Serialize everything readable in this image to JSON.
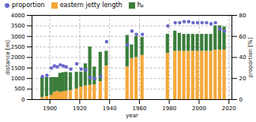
{
  "chart_data": {
    "type": "bar",
    "stacked": true,
    "xlabel": "year",
    "ylabel": "distance [m]",
    "y2label": "proportion [%]",
    "x": [
      1895,
      1898,
      1901,
      1903,
      1905,
      1907,
      1909,
      1911,
      1914,
      1918,
      1921,
      1924,
      1927,
      1930,
      1934,
      1938,
      1952,
      1955,
      1958,
      1962,
      1979,
      1984,
      1987,
      1990,
      1993,
      1996,
      1999,
      2002,
      2005,
      2008,
      2011,
      2014,
      2017
    ],
    "xlim": [
      1888,
      2022
    ],
    "xticks": [
      1900,
      1920,
      1940,
      1960,
      1980,
      2000,
      2020
    ],
    "ylim": [
      0,
      4000
    ],
    "yticks": [
      0,
      500,
      1000,
      1500,
      2000,
      2500,
      3000,
      3500,
      4000
    ],
    "y2lim": [
      0,
      80
    ],
    "y2ticks": [
      0,
      20,
      40,
      60,
      80
    ],
    "grid": true,
    "legend": "upper left",
    "series": [
      {
        "name": "proportion",
        "type": "scatter",
        "axis": "y2",
        "color": "#6666CC",
        "values": [
          22,
          23,
          30,
          32,
          31,
          33,
          32,
          31,
          29,
          34,
          29,
          28,
          21,
          20,
          22,
          55,
          52,
          65,
          62,
          62,
          70,
          73,
          73,
          74,
          74,
          73,
          73,
          73,
          73,
          72,
          73,
          67,
          65
        ]
      },
      {
        "name": "eastern jetty length",
        "type": "bar",
        "color": "#F5A83A",
        "values": [
          100,
          150,
          200,
          350,
          400,
          350,
          380,
          400,
          430,
          500,
          600,
          650,
          680,
          700,
          850,
          1600,
          1550,
          1950,
          2000,
          2100,
          2200,
          2300,
          2300,
          2300,
          2300,
          2300,
          2300,
          2300,
          2300,
          2300,
          2350,
          2350,
          2350
        ]
      },
      {
        "name": "hₚ",
        "type": "bar",
        "color": "#3A7D3A",
        "values": [
          950,
          900,
          850,
          700,
          650,
          900,
          900,
          900,
          850,
          800,
          700,
          1050,
          1820,
          850,
          1400,
          700,
          1500,
          650,
          1000,
          850,
          900,
          950,
          850,
          800,
          800,
          800,
          800,
          800,
          800,
          800,
          1150,
          1150,
          1100
        ]
      }
    ]
  }
}
